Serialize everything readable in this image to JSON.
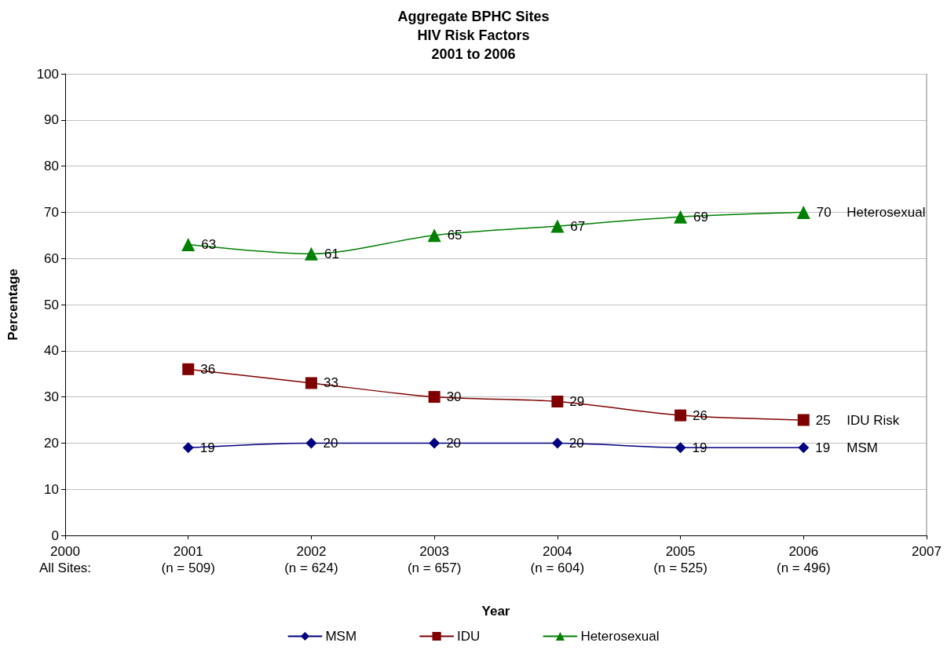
{
  "chart_data": {
    "type": "line",
    "title": "Aggregate BPHC Sites\nHIV Risk Factors\n2001 to 2006",
    "xlabel": "Year",
    "ylabel": "Percentage",
    "x": [
      2001,
      2002,
      2003,
      2004,
      2005,
      2006
    ],
    "series": [
      {
        "name": "MSM",
        "color": "#000080",
        "marker": "diamond",
        "values": [
          19,
          20,
          20,
          20,
          19,
          19
        ]
      },
      {
        "name": "IDU",
        "color": "#800000",
        "marker": "square",
        "values": [
          36,
          33,
          30,
          29,
          26,
          25
        ]
      },
      {
        "name": "Heterosexual",
        "color": "#008000",
        "marker": "triangle",
        "values": [
          63,
          61,
          65,
          67,
          69,
          70
        ]
      }
    ],
    "xlim": [
      2000,
      2007
    ],
    "xticks": [
      {
        "value": 2000,
        "label": "2000\nAll Sites:"
      },
      {
        "value": 2001,
        "label": "2001\n(n = 509)"
      },
      {
        "value": 2002,
        "label": "2002\n(n = 624)"
      },
      {
        "value": 2003,
        "label": "2003\n(n = 657)"
      },
      {
        "value": 2004,
        "label": "2004\n(n = 604)"
      },
      {
        "value": 2005,
        "label": "2005\n(n = 525)"
      },
      {
        "value": 2006,
        "label": "2006\n(n = 496)"
      },
      2007
    ],
    "ylim": [
      0,
      100
    ],
    "yticks": [
      0,
      10,
      20,
      30,
      40,
      50,
      60,
      70,
      80,
      90,
      100
    ],
    "annotations": [
      "MSM",
      "IDU Risk",
      "Heterosexual"
    ],
    "data_labels": true,
    "grid": "y",
    "legend": "bottom",
    "line_style": "solid"
  }
}
